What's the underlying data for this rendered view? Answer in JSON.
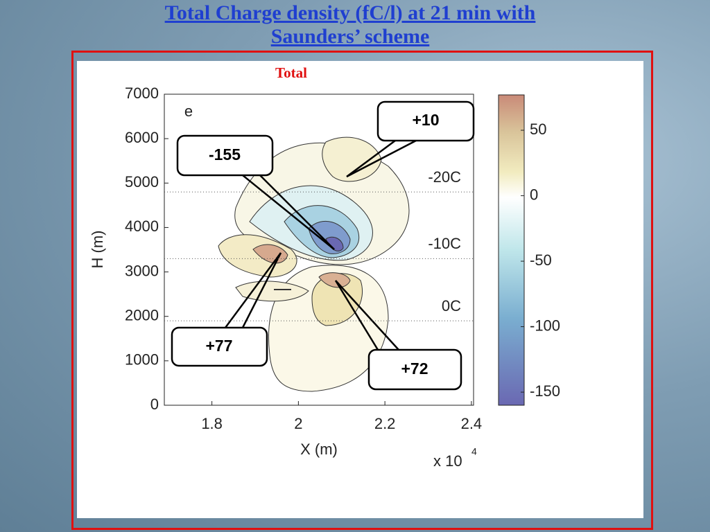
{
  "title": "Total Charge density (fC/l) at 21 min with Saunders’ scheme",
  "chart_data": {
    "type": "contour",
    "subtitle": "Total",
    "panel_label": "e",
    "x_label": "X (m)",
    "y_label": "H (m)",
    "x_scale_label": {
      "base": "x 10",
      "exponent": "4"
    },
    "xlim": [
      1.69,
      2.405
    ],
    "xticks": [
      1.8,
      2,
      2.2,
      2.4
    ],
    "ylim": [
      0,
      7000
    ],
    "yticks": [
      0,
      1000,
      2000,
      3000,
      4000,
      5000,
      6000,
      7000
    ],
    "isotherms": [
      {
        "value": 4800,
        "label": "-20C"
      },
      {
        "value": 3300,
        "label": "-10C"
      },
      {
        "value": 1900,
        "label": "0C"
      }
    ],
    "clim": [
      -160,
      77
    ],
    "cticks": [
      -150,
      -100,
      -50,
      0,
      50
    ],
    "callouts": [
      "+10",
      "-155",
      "+77",
      "+72"
    ]
  }
}
